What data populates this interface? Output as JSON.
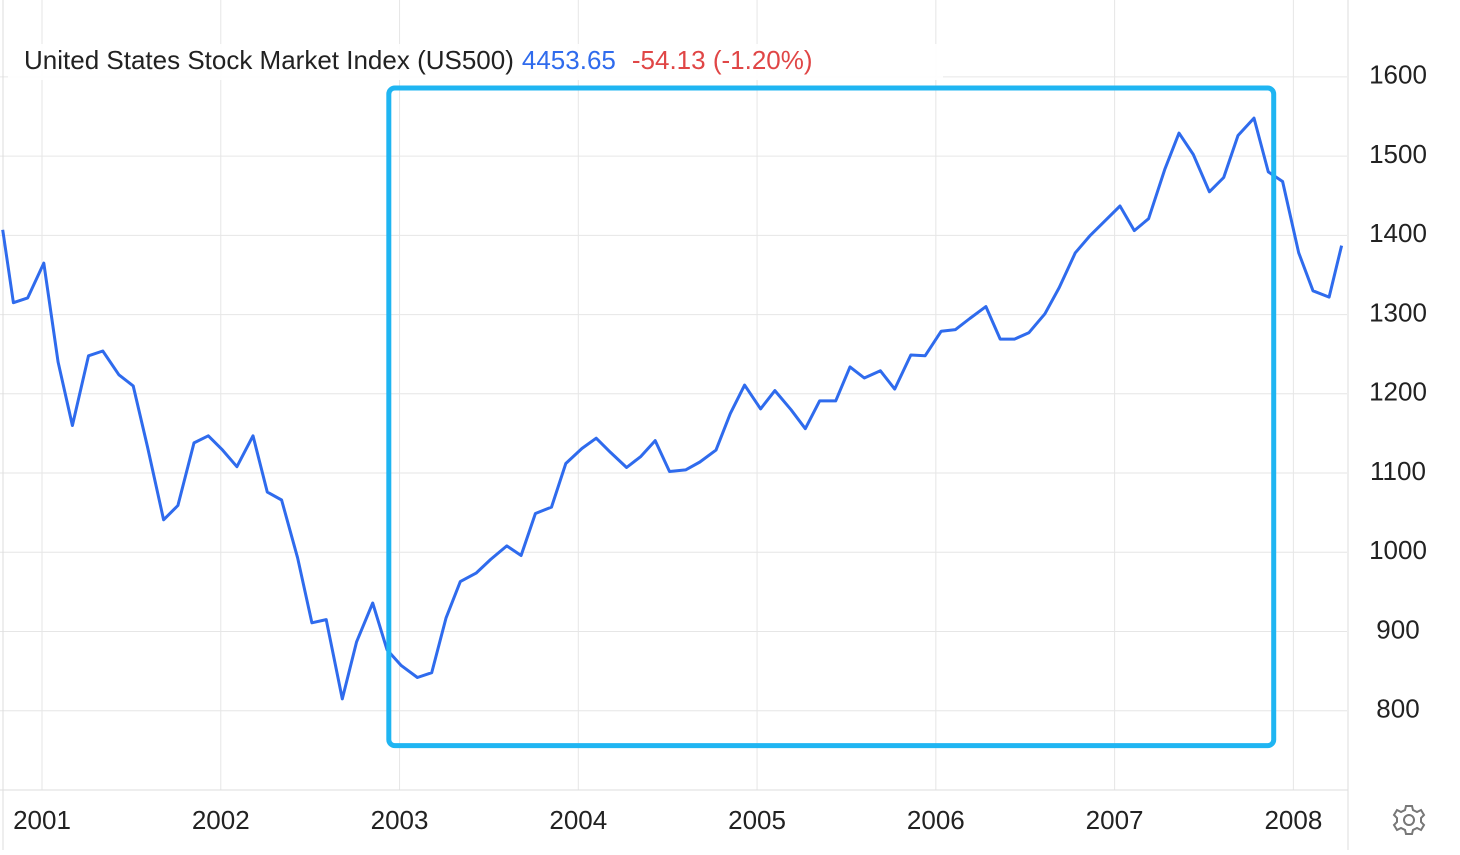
{
  "chart_data": {
    "type": "line",
    "header": {
      "title": "United States Stock Market Index (US500)",
      "price": "4453.65",
      "change": "-54.13 (-1.20%)"
    },
    "x": [
      2000.78,
      2000.84,
      2000.92,
      2001.01,
      2001.09,
      2001.17,
      2001.26,
      2001.34,
      2001.43,
      2001.51,
      2001.59,
      2001.68,
      2001.76,
      2001.85,
      2001.93,
      2002.01,
      2002.09,
      2002.18,
      2002.26,
      2002.34,
      2002.43,
      2002.51,
      2002.59,
      2002.68,
      2002.76,
      2002.85,
      2002.93,
      2003.01,
      2003.1,
      2003.18,
      2003.26,
      2003.34,
      2003.43,
      2003.51,
      2003.6,
      2003.68,
      2003.76,
      2003.85,
      2003.93,
      2004.02,
      2004.1,
      2004.18,
      2004.27,
      2004.35,
      2004.43,
      2004.51,
      2004.6,
      2004.68,
      2004.77,
      2004.85,
      2004.93,
      2005.02,
      2005.1,
      2005.19,
      2005.27,
      2005.35,
      2005.44,
      2005.52,
      2005.6,
      2005.69,
      2005.77,
      2005.86,
      2005.94,
      2006.03,
      2006.11,
      2006.19,
      2006.28,
      2006.36,
      2006.44,
      2006.52,
      2006.61,
      2006.69,
      2006.78,
      2006.86,
      2006.94,
      2007.03,
      2007.11,
      2007.19,
      2007.28,
      2007.36,
      2007.44,
      2007.53,
      2007.61,
      2007.69,
      2007.78,
      2007.86,
      2007.94,
      2008.03,
      2008.11,
      2008.2,
      2008.27
    ],
    "series": [
      {
        "name": "US500",
        "color": "#2f6bed",
        "values": [
          1407,
          1315,
          1321,
          1365,
          1240,
          1160,
          1248,
          1254,
          1224,
          1210,
          1133,
          1041,
          1059,
          1138,
          1147,
          1129,
          1108,
          1147,
          1076,
          1066,
          993,
          911,
          915,
          815,
          887,
          936,
          877,
          857,
          842,
          848,
          917,
          963,
          974,
          991,
          1008,
          996,
          1049,
          1057,
          1112,
          1131,
          1144,
          1126,
          1107,
          1121,
          1141,
          1102,
          1104,
          1114,
          1129,
          1175,
          1211,
          1181,
          1204,
          1180,
          1156,
          1191,
          1191,
          1234,
          1220,
          1229,
          1206,
          1249,
          1248,
          1279,
          1281,
          1295,
          1310,
          1269,
          1269,
          1277,
          1301,
          1334,
          1378,
          1399,
          1417,
          1437,
          1406,
          1421,
          1483,
          1529,
          1502,
          1455,
          1473,
          1526,
          1548,
          1480,
          1468,
          1378,
          1330,
          1322,
          1387
        ]
      }
    ],
    "xlim": [
      2000.765,
      2008.3
    ],
    "xticks": [
      2001,
      2002,
      2003,
      2004,
      2005,
      2006,
      2007,
      2008
    ],
    "ylim": [
      700,
      1697
    ],
    "yticks": [
      800,
      900,
      1000,
      1100,
      1200,
      1300,
      1400,
      1500,
      1600
    ],
    "grid": true,
    "highlight": {
      "color": "#1fb5f2",
      "xlim": [
        2002.94,
        2007.89
      ],
      "ylim": [
        756,
        1586
      ]
    }
  }
}
